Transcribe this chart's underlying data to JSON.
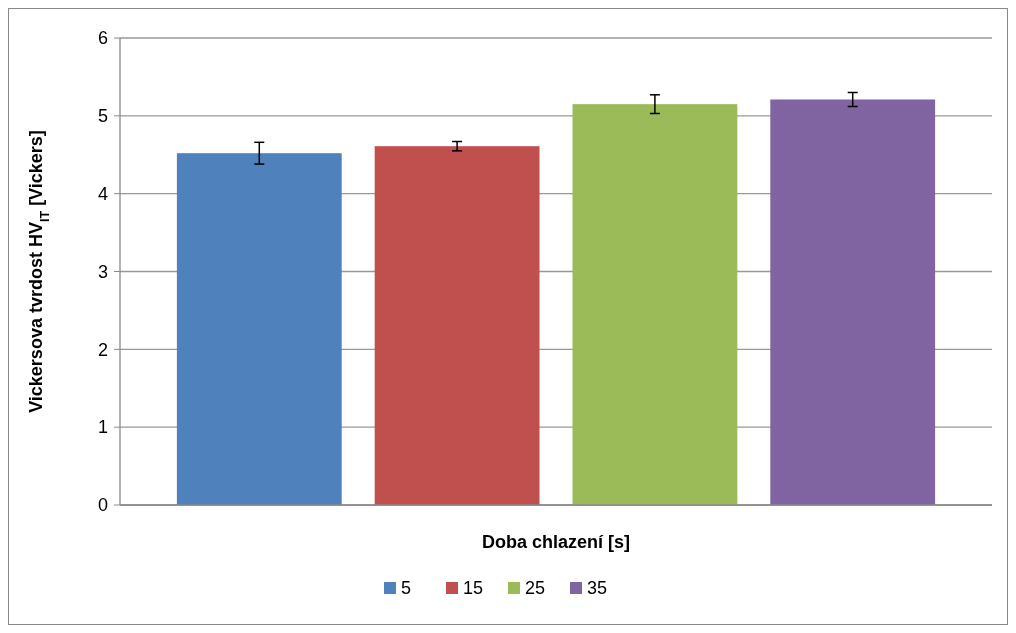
{
  "chart_data": {
    "type": "bar",
    "xlabel": "Doba chlazení [s]",
    "ylabel": "Vickersova tvrdost HV$_{IT}$ [Vickers]",
    "categories": [
      null
    ],
    "series": [
      {
        "name": "5",
        "color": "#4f81bd",
        "values": [
          4.52
        ],
        "errors": [
          0.14
        ]
      },
      {
        "name": "15",
        "color": "#c0504d",
        "values": [
          4.61
        ],
        "errors": [
          0.06
        ]
      },
      {
        "name": "25",
        "color": "#9bbb59",
        "values": [
          5.15
        ],
        "errors": [
          0.12
        ]
      },
      {
        "name": "35",
        "color": "#8064a2",
        "values": [
          5.21
        ],
        "errors": [
          0.09
        ]
      }
    ],
    "ylim": [
      0,
      6
    ],
    "yticks": [
      0,
      1,
      2,
      3,
      4,
      5,
      6
    ],
    "grid": "y",
    "legend": "bottom"
  }
}
